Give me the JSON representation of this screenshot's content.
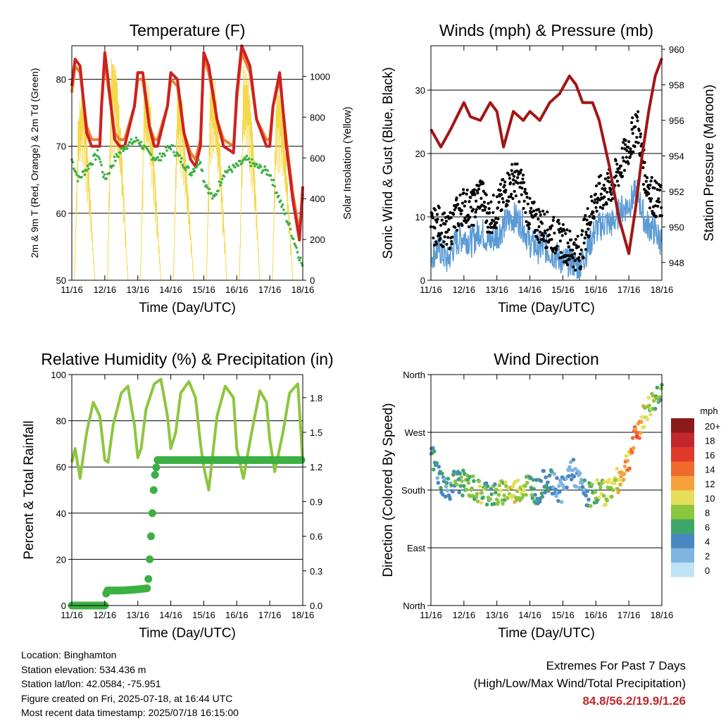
{
  "colors": {
    "temp_2m": "#cc2222",
    "temp_9m": "#f08030",
    "dewpoint": "#3cb043",
    "solar": "#f4d84a",
    "wind": "#5b9bd5",
    "gust": "#000000",
    "pressure": "#a31515",
    "rh": "#8dc63f",
    "precip": "#3cb043"
  },
  "chart_data": [
    {
      "id": "temperature",
      "type": "line",
      "title": "Temperature (F)",
      "xlabel": "Time (Day/UTC)",
      "ylabel": "2m & 9m T (Red, Orange) & 2m Td (Green)",
      "y2label": "Solar Insolation (Yellow)",
      "x_ticks": [
        "11/16",
        "12/16",
        "13/16",
        "14/16",
        "15/16",
        "16/16",
        "17/16",
        "18/16"
      ],
      "xlim": [
        0,
        7
      ],
      "ylim": [
        50,
        85
      ],
      "y_ticks": [
        50,
        60,
        70,
        80
      ],
      "y2lim": [
        0,
        1150
      ],
      "y2_ticks": [
        0,
        200,
        400,
        600,
        800,
        1000
      ],
      "grid": true,
      "series": [
        {
          "name": "2m T",
          "color_key": "temp_2m",
          "x": [
            0,
            0.1,
            0.25,
            0.45,
            0.6,
            0.85,
            0.9,
            1.0,
            1.1,
            1.3,
            1.45,
            1.6,
            1.9,
            2.0,
            2.15,
            2.35,
            2.5,
            2.6,
            2.9,
            3.0,
            3.2,
            3.4,
            3.6,
            3.75,
            3.9,
            4.0,
            4.15,
            4.4,
            4.6,
            4.9,
            5.0,
            5.15,
            5.4,
            5.6,
            5.9,
            6.0,
            6.1,
            6.3,
            6.5,
            6.7,
            6.9,
            7.0
          ],
          "values": [
            79,
            83,
            82,
            72,
            70,
            70,
            76,
            84,
            80,
            71,
            70,
            70,
            76,
            81,
            81,
            73,
            70,
            70,
            76,
            81,
            80,
            72,
            68,
            67,
            70,
            84,
            82,
            74,
            70,
            69,
            78,
            85,
            82,
            74,
            70,
            70,
            76,
            81,
            70,
            62,
            56,
            64
          ]
        },
        {
          "name": "9m T",
          "color_key": "temp_9m",
          "x": [
            0,
            0.1,
            0.25,
            0.45,
            0.6,
            0.85,
            0.9,
            1.0,
            1.1,
            1.3,
            1.45,
            1.6,
            1.9,
            2.0,
            2.15,
            2.35,
            2.5,
            2.6,
            2.9,
            3.0,
            3.2,
            3.4,
            3.6,
            3.75,
            3.9,
            4.0,
            4.15,
            4.4,
            4.6,
            4.9,
            5.0,
            5.15,
            5.4,
            5.6,
            5.9,
            6.0,
            6.1,
            6.3,
            6.5,
            6.7,
            6.9,
            7.0
          ],
          "values": [
            78,
            82,
            81,
            73,
            71,
            71,
            76,
            83,
            79,
            72,
            71,
            71,
            76,
            80,
            80,
            73,
            71,
            71,
            76,
            80,
            79,
            72,
            69,
            68,
            71,
            83,
            81,
            74,
            71,
            70,
            77,
            84,
            81,
            74,
            71,
            71,
            76,
            80,
            71,
            63,
            57,
            63
          ]
        },
        {
          "name": "2m Td",
          "color_key": "dewpoint",
          "x": [
            0,
            0.2,
            0.5,
            0.8,
            1.0,
            1.3,
            1.6,
            2.0,
            2.3,
            2.6,
            3.0,
            3.3,
            3.6,
            3.9,
            4.0,
            4.3,
            4.6,
            5.0,
            5.3,
            5.6,
            6.0,
            6.3,
            6.6,
            6.8,
            7.0
          ],
          "values": [
            68,
            65,
            67,
            69,
            65,
            68,
            70,
            71,
            69,
            68,
            70,
            68,
            66,
            68,
            65,
            62,
            66,
            67,
            68,
            67,
            66,
            62,
            58,
            55,
            52
          ]
        },
        {
          "name": "Solar",
          "color_key": "solar",
          "axis": "y2",
          "x": [
            0,
            0.08,
            0.2,
            0.35,
            0.5,
            0.7,
            0.9,
            1.0,
            1.08,
            1.2,
            1.35,
            1.5,
            1.7,
            1.9,
            2.0,
            2.08,
            2.2,
            2.35,
            2.5,
            2.7,
            2.9,
            3.0,
            3.08,
            3.2,
            3.35,
            3.5,
            3.7,
            3.9,
            4.0,
            4.08,
            4.2,
            4.35,
            4.5,
            4.7,
            4.9,
            5.0,
            5.08,
            5.2,
            5.35,
            5.5,
            5.7,
            5.9,
            6.0,
            6.08,
            6.2,
            6.35,
            6.5,
            6.7,
            6.9,
            7.0
          ],
          "values": [
            0,
            0,
            850,
            950,
            600,
            0,
            0,
            0,
            0,
            1100,
            1050,
            700,
            0,
            0,
            0,
            0,
            1000,
            950,
            600,
            0,
            0,
            0,
            0,
            950,
            900,
            500,
            0,
            0,
            0,
            0,
            1000,
            980,
            650,
            0,
            0,
            0,
            0,
            1050,
            1000,
            700,
            0,
            0,
            0,
            0,
            950,
            900,
            600,
            0,
            0,
            0
          ]
        }
      ]
    },
    {
      "id": "winds",
      "type": "scatter",
      "title": "Winds (mph) & Pressure (mb)",
      "xlabel": "Time (Day/UTC)",
      "ylabel": "Sonic Wind & Gust (Blue, Black)",
      "y2label": "Station Pressure (Maroon)",
      "x_ticks": [
        "11/16",
        "12/16",
        "13/16",
        "14/16",
        "15/16",
        "16/16",
        "17/16",
        "18/16"
      ],
      "xlim": [
        0,
        7
      ],
      "ylim": [
        0,
        37
      ],
      "y_ticks": [
        0,
        10,
        20,
        30
      ],
      "y2lim": [
        947,
        960.2
      ],
      "y2_ticks": [
        948,
        950,
        952,
        954,
        956,
        958,
        960
      ],
      "grid": true,
      "series": [
        {
          "name": "Gust",
          "color_key": "gust",
          "x": [
            0,
            0.25,
            0.5,
            0.75,
            1.0,
            1.25,
            1.5,
            1.75,
            2.0,
            2.25,
            2.5,
            2.75,
            3.0,
            3.25,
            3.5,
            3.75,
            4.0,
            4.25,
            4.5,
            4.75,
            5.0,
            5.25,
            5.5,
            5.75,
            6.0,
            6.25,
            6.5,
            6.75,
            7.0
          ],
          "values": [
            8,
            9,
            7,
            10,
            12,
            11,
            14,
            10,
            11,
            14,
            16,
            15,
            10,
            9,
            8,
            7,
            6,
            5,
            4,
            9,
            13,
            14,
            15,
            18,
            21,
            25,
            16,
            13,
            12
          ]
        },
        {
          "name": "Wind",
          "color_key": "wind",
          "x": [
            0,
            0.25,
            0.5,
            0.75,
            1.0,
            1.25,
            1.5,
            1.75,
            2.0,
            2.25,
            2.5,
            2.75,
            3.0,
            3.25,
            3.5,
            3.75,
            4.0,
            4.25,
            4.5,
            4.75,
            5.0,
            5.25,
            5.5,
            5.75,
            6.0,
            6.25,
            6.5,
            6.75,
            7.0
          ],
          "values": [
            4,
            5,
            3,
            6,
            7,
            6,
            8,
            6,
            7,
            9,
            10,
            9,
            6,
            5,
            5,
            4,
            3,
            3,
            2,
            5,
            8,
            9,
            9,
            11,
            12,
            14,
            9,
            8,
            6
          ]
        },
        {
          "name": "Pressure",
          "color_key": "pressure",
          "axis": "y2",
          "x": [
            0,
            0.3,
            0.6,
            1.0,
            1.2,
            1.5,
            1.8,
            2.0,
            2.2,
            2.5,
            2.8,
            3.0,
            3.3,
            3.6,
            3.9,
            4.2,
            4.4,
            4.6,
            4.9,
            5.1,
            5.4,
            5.7,
            6.0,
            6.2,
            6.4,
            6.6,
            6.8,
            7.0
          ],
          "values": [
            955.5,
            954.5,
            955.5,
            957,
            956.2,
            956,
            957,
            956.5,
            954.5,
            956.5,
            956,
            956.5,
            956,
            957,
            957.5,
            958.5,
            958,
            957,
            957,
            956,
            953.5,
            950.5,
            948.5,
            951,
            954,
            956.5,
            958.5,
            959.5
          ]
        }
      ]
    },
    {
      "id": "humidity",
      "type": "line",
      "title": "Relative Humidity (%) & Precipitation (in)",
      "xlabel": "Time (Day/UTC)",
      "ylabel": "Percent & Total Rainfall",
      "x_ticks": [
        "11/16",
        "12/16",
        "13/16",
        "14/16",
        "15/16",
        "16/16",
        "17/16",
        "18/16"
      ],
      "xlim": [
        0,
        7
      ],
      "ylim": [
        0,
        100
      ],
      "y_ticks": [
        0,
        20,
        40,
        60,
        80,
        100
      ],
      "y2lim": [
        0,
        2
      ],
      "y2_ticks": [
        "0.0",
        "0.3",
        "0.6",
        "0.9",
        "1.2",
        "1.5",
        "1.8"
      ],
      "grid": true,
      "series": [
        {
          "name": "RH",
          "color_key": "rh",
          "x": [
            0,
            0.1,
            0.25,
            0.45,
            0.65,
            0.85,
            1.0,
            1.1,
            1.25,
            1.5,
            1.7,
            1.9,
            2.0,
            2.1,
            2.25,
            2.5,
            2.7,
            2.9,
            3.0,
            3.15,
            3.3,
            3.55,
            3.75,
            3.9,
            4.0,
            4.15,
            4.4,
            4.65,
            4.9,
            5.0,
            5.2,
            5.45,
            5.7,
            5.9,
            6.0,
            6.15,
            6.4,
            6.6,
            6.85,
            7.0
          ],
          "values": [
            62,
            68,
            55,
            75,
            88,
            82,
            63,
            62,
            78,
            92,
            95,
            78,
            64,
            68,
            85,
            96,
            98,
            82,
            68,
            75,
            92,
            97,
            90,
            70,
            60,
            50,
            82,
            95,
            90,
            68,
            55,
            75,
            93,
            88,
            72,
            58,
            75,
            92,
            96,
            62
          ]
        },
        {
          "name": "Total Precipitation",
          "color_key": "precip",
          "axis": "y2",
          "x": [
            0,
            0.5,
            1.0,
            1.05,
            1.5,
            2.0,
            2.3,
            2.35,
            2.4,
            2.45,
            2.5,
            2.6,
            3.0,
            4.0,
            5.0,
            6.0,
            7.0
          ],
          "values": [
            0,
            0,
            0,
            0.13,
            0.13,
            0.14,
            0.15,
            0.35,
            0.6,
            0.85,
            1.1,
            1.26,
            1.26,
            1.26,
            1.26,
            1.26,
            1.26
          ]
        }
      ]
    },
    {
      "id": "direction",
      "type": "scatter",
      "title": "Wind Direction",
      "xlabel": "Time (Day/UTC)",
      "ylabel": "Direction (Colored By Speed)",
      "x_ticks": [
        "11/16",
        "12/16",
        "13/16",
        "14/16",
        "15/16",
        "16/16",
        "17/16",
        "18/16"
      ],
      "xlim": [
        0,
        7
      ],
      "ylim": [
        0,
        360
      ],
      "y_ticks": [
        "North",
        "East",
        "South",
        "West",
        "North"
      ],
      "grid": true,
      "legend": {
        "title": "mph",
        "labels": [
          "20+",
          "18",
          "16",
          "14",
          "12",
          "10",
          "8",
          "6",
          "4",
          "2",
          "0"
        ],
        "colors": [
          "#8b1a1a",
          "#c1272d",
          "#e03a2c",
          "#f06a2c",
          "#f7a13c",
          "#e6de5a",
          "#8cc63f",
          "#3fa66a",
          "#4a86c0",
          "#7fb5e0",
          "#bfe3f5"
        ]
      },
      "x": [
        0,
        0.25,
        0.5,
        0.75,
        1.0,
        1.25,
        1.5,
        1.75,
        2.0,
        2.25,
        2.5,
        2.75,
        3.0,
        3.25,
        3.5,
        3.75,
        4.0,
        4.25,
        4.5,
        4.75,
        5.0,
        5.25,
        5.5,
        5.75,
        6.0,
        6.25,
        6.5,
        6.75,
        7.0
      ],
      "values": [
        240,
        200,
        180,
        195,
        190,
        185,
        175,
        178,
        170,
        180,
        176,
        185,
        190,
        175,
        200,
        185,
        180,
        215,
        190,
        170,
        180,
        175,
        185,
        200,
        230,
        270,
        300,
        320,
        340
      ],
      "speeds": [
        4,
        5,
        3,
        6,
        7,
        6,
        8,
        6,
        7,
        9,
        10,
        9,
        6,
        5,
        5,
        4,
        3,
        3,
        2,
        5,
        8,
        9,
        9,
        11,
        12,
        14,
        9,
        8,
        6
      ]
    }
  ],
  "station": {
    "location": "Location: Binghamton",
    "elevation": "Station elevation: 534.436 m",
    "latlon": "Station lat/lon: 42.0584; -75.951",
    "created": "Figure created on Fri, 2025-07-18, at 16:44 UTC",
    "recent": "Most recent data timestamp: 2025/07/18 16:15:00"
  },
  "extremes": {
    "title": "Extremes For Past 7 Days",
    "subtitle": "(High/Low/Max Wind/Total Precipitation)",
    "values": "84.8/56.2/19.9/1.26"
  }
}
